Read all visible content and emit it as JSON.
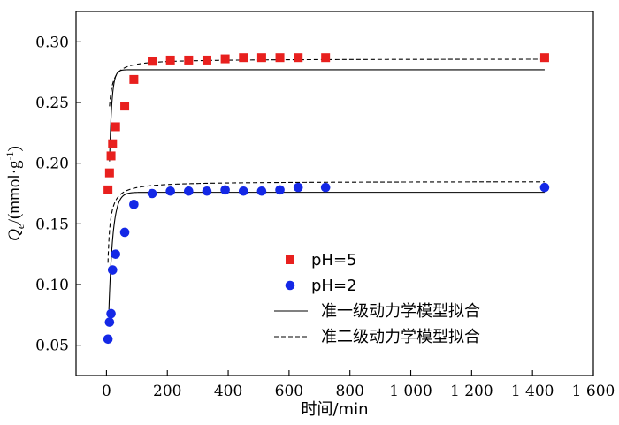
{
  "chart_data": {
    "type": "scatter",
    "xlabel": "时间/min",
    "ylabel": {
      "main": "Q",
      "sub": "e",
      "rest": "/(mmol·g",
      "sup": "-1",
      "close": ")"
    },
    "xlim": [
      -100,
      1600
    ],
    "ylim": [
      0.025,
      0.325
    ],
    "x_ticks": [
      {
        "value": 0,
        "label": "0"
      },
      {
        "value": 200,
        "label": "200"
      },
      {
        "value": 400,
        "label": "400"
      },
      {
        "value": 600,
        "label": "600"
      },
      {
        "value": 800,
        "label": "800"
      },
      {
        "value": 1000,
        "label": "1 000"
      },
      {
        "value": 1200,
        "label": "1 200"
      },
      {
        "value": 1400,
        "label": "1 400"
      },
      {
        "value": 1600,
        "label": "1 600"
      }
    ],
    "y_ticks": [
      {
        "value": 0.05,
        "label": "0.05"
      },
      {
        "value": 0.1,
        "label": "0.10"
      },
      {
        "value": 0.15,
        "label": "0.15"
      },
      {
        "value": 0.2,
        "label": "0.20"
      },
      {
        "value": 0.25,
        "label": "0.25"
      },
      {
        "value": 0.3,
        "label": "0.30"
      }
    ],
    "series": [
      {
        "name": "pH=5",
        "marker": "square",
        "color": "#e8201e",
        "x": [
          5,
          10,
          15,
          20,
          30,
          60,
          90,
          150,
          210,
          270,
          330,
          390,
          450,
          510,
          570,
          630,
          720,
          1440
        ],
        "y": [
          0.178,
          0.192,
          0.206,
          0.216,
          0.23,
          0.247,
          0.269,
          0.284,
          0.285,
          0.285,
          0.285,
          0.286,
          0.287,
          0.287,
          0.287,
          0.287,
          0.287,
          0.287
        ]
      },
      {
        "name": "pH=2",
        "marker": "circle",
        "color": "#1428e6",
        "x": [
          5,
          10,
          15,
          20,
          30,
          60,
          90,
          150,
          210,
          270,
          330,
          390,
          450,
          510,
          570,
          630,
          720,
          1440
        ],
        "y": [
          0.055,
          0.069,
          0.076,
          0.112,
          0.125,
          0.143,
          0.166,
          0.175,
          0.177,
          0.177,
          0.177,
          0.178,
          0.177,
          0.177,
          0.178,
          0.18,
          0.18,
          0.18
        ]
      }
    ],
    "fit_curves": [
      {
        "name": "准一级动力学模型拟合",
        "style": "solid",
        "applies_to": "pH=5",
        "qe": 0.277,
        "k": 0.13,
        "x_start": 10,
        "x_end": 1440
      },
      {
        "name": "准一级动力学模型拟合",
        "style": "solid",
        "applies_to": "pH=2",
        "qe": 0.176,
        "k": 0.075,
        "x_start": 8,
        "x_end": 1440
      },
      {
        "name": "准二级动力学模型拟合",
        "style": "dashed",
        "applies_to": "pH=5",
        "qe": 0.286,
        "k2": 2.2,
        "x_start": 10,
        "x_end": 1440
      },
      {
        "name": "准二级动力学模型拟合",
        "style": "dashed",
        "applies_to": "pH=2",
        "qe": 0.185,
        "k2": 1.9,
        "x_start": 5,
        "x_end": 1440
      }
    ],
    "legend": {
      "placement": "center-right",
      "entries": [
        {
          "label": "pH=5",
          "kind": "square",
          "color": "#e8201e"
        },
        {
          "label": "pH=2",
          "kind": "circle",
          "color": "#1428e6"
        },
        {
          "label": "准一级动力学模型拟合",
          "kind": "solid-line",
          "color": "#000000"
        },
        {
          "label": "准二级动力学模型拟合",
          "kind": "dashed-line",
          "color": "#000000"
        }
      ]
    }
  }
}
